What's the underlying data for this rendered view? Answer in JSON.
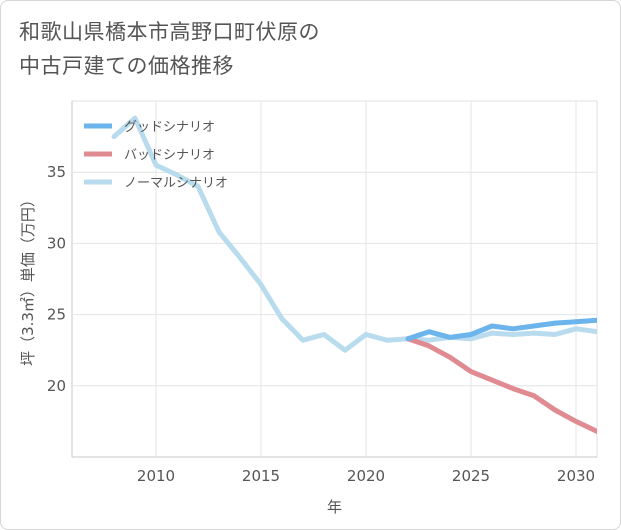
{
  "title_lines": [
    "和歌山県橋本市高野口町伏原の",
    "中古戸建ての価格推移"
  ],
  "chart_data": {
    "type": "line",
    "title": "和歌山県橋本市高野口町伏原の中古戸建ての価格推移",
    "xlabel": "年",
    "ylabel": "坪（3.3㎡）単価（万円）",
    "xlim": [
      2006,
      2031
    ],
    "ylim": [
      15,
      40
    ],
    "xticks": [
      2010,
      2015,
      2020,
      2025,
      2030
    ],
    "yticks": [
      20,
      25,
      30,
      35
    ],
    "grid": true,
    "legend_position": "top-left",
    "series": [
      {
        "name": "グッドシナリオ",
        "color": "#6cb4ec",
        "x": [
          2022,
          2023,
          2024,
          2025,
          2026,
          2027,
          2028,
          2029,
          2030,
          2031
        ],
        "values": [
          23.3,
          23.8,
          23.4,
          23.6,
          24.2,
          24.0,
          24.2,
          24.4,
          24.5,
          24.6
        ]
      },
      {
        "name": "バッドシナリオ",
        "color": "#e08a91",
        "x": [
          2022,
          2023,
          2024,
          2025,
          2026,
          2027,
          2028,
          2029,
          2030,
          2031
        ],
        "values": [
          23.3,
          22.8,
          22.0,
          21.0,
          20.4,
          19.8,
          19.3,
          18.3,
          17.5,
          16.8
        ]
      },
      {
        "name": "ノーマルシナリオ",
        "color": "#b8dced",
        "x": [
          2008,
          2009,
          2010,
          2011,
          2012,
          2013,
          2014,
          2015,
          2016,
          2017,
          2018,
          2019,
          2020,
          2021,
          2022,
          2023,
          2024,
          2025,
          2026,
          2027,
          2028,
          2029,
          2030,
          2031
        ],
        "values": [
          37.5,
          38.8,
          35.5,
          34.8,
          34.0,
          30.8,
          29.0,
          27.1,
          24.7,
          23.2,
          23.6,
          22.5,
          23.6,
          23.2,
          23.3,
          23.2,
          23.4,
          23.3,
          23.7,
          23.6,
          23.7,
          23.6,
          24.0,
          23.8
        ]
      }
    ]
  }
}
